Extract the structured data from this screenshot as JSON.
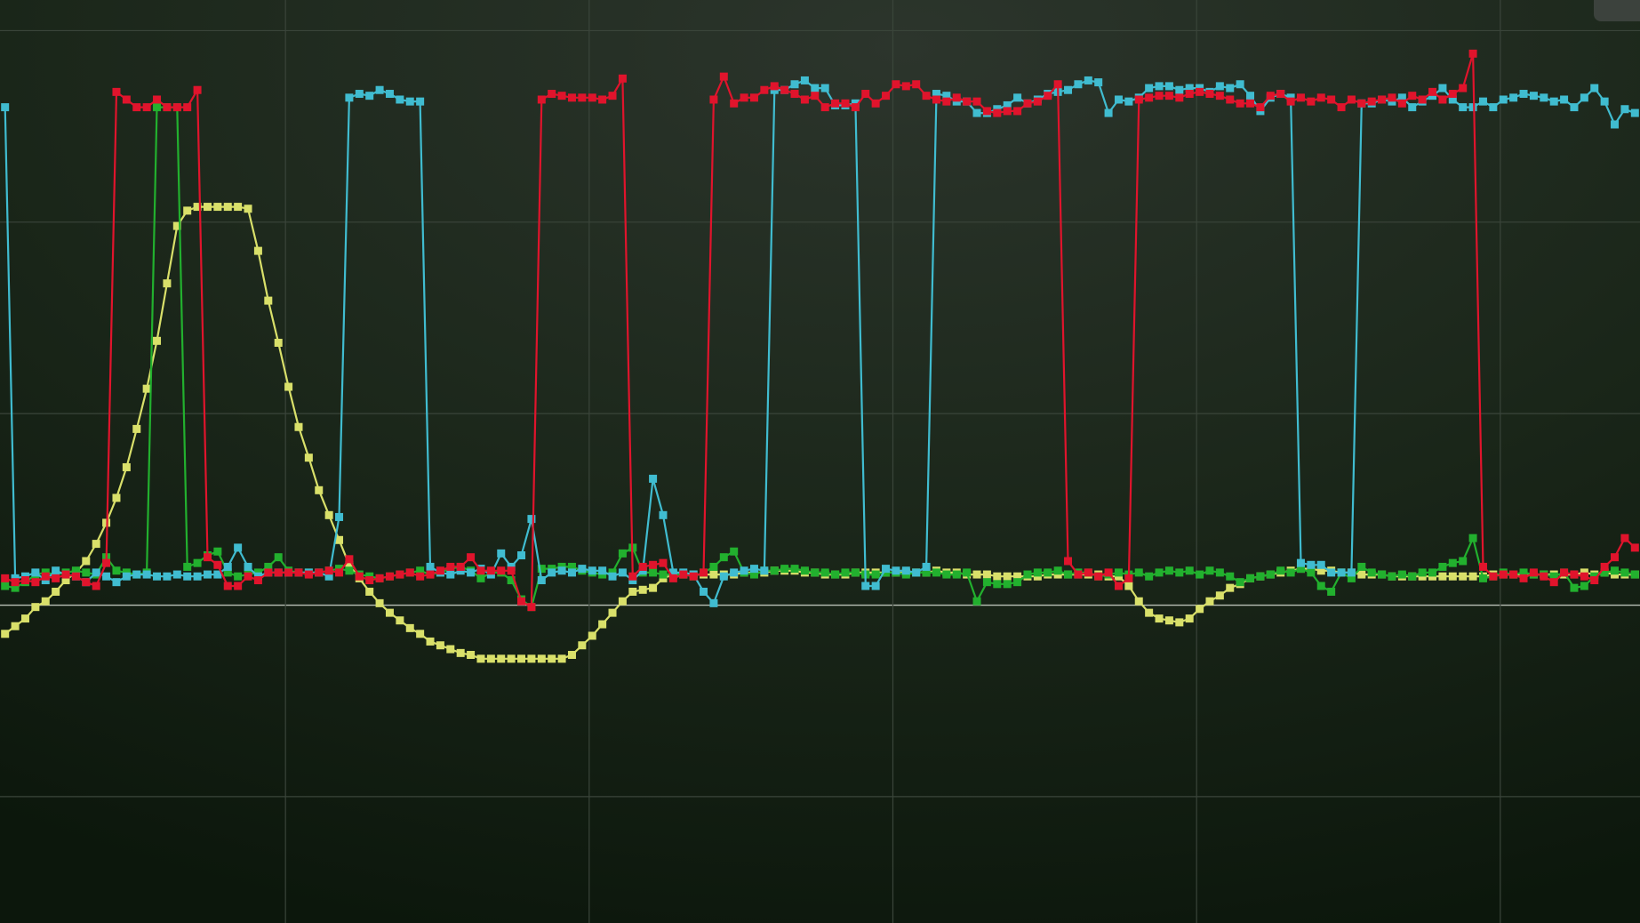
{
  "chart_data": {
    "type": "line",
    "x": [
      0,
      1,
      2,
      3,
      4,
      5,
      6,
      7,
      8,
      9,
      10,
      11,
      12,
      13,
      14,
      15,
      16,
      17,
      18,
      19,
      20,
      21,
      22,
      23,
      24,
      25,
      26,
      27,
      28,
      29,
      30,
      31,
      32,
      33,
      34,
      35,
      36,
      37,
      38,
      39,
      40,
      41,
      42,
      43,
      44,
      45,
      46,
      47,
      48,
      49,
      50,
      51,
      52,
      53,
      54,
      55,
      56,
      57,
      58,
      59,
      60,
      61,
      62,
      63,
      64,
      65,
      66,
      67,
      68,
      69,
      70,
      71,
      72,
      73,
      74,
      75,
      76,
      77,
      78,
      79,
      80,
      81,
      82,
      83,
      84,
      85,
      86,
      87,
      88,
      89,
      90,
      91,
      92,
      93,
      94,
      95,
      96,
      97,
      98,
      99,
      100,
      101,
      102,
      103,
      104,
      105,
      106,
      107,
      108,
      109,
      110,
      111,
      112,
      113,
      114,
      115,
      116,
      117,
      118,
      119,
      120,
      121,
      122,
      123,
      124,
      125,
      126,
      127,
      128,
      129,
      130,
      131,
      132,
      133,
      134,
      135,
      136,
      137,
      138,
      139,
      140,
      141,
      142,
      143,
      144,
      145,
      146,
      147,
      148,
      149,
      150,
      151,
      152,
      153,
      154,
      155,
      156,
      157,
      158,
      159,
      160,
      161
    ],
    "series": [
      {
        "color": "#d9e06a",
        "values": [
          -0.15,
          -0.11,
          -0.07,
          -0.01,
          0.02,
          0.07,
          0.13,
          0.17,
          0.23,
          0.32,
          0.43,
          0.56,
          0.72,
          0.92,
          1.13,
          1.38,
          1.68,
          1.98,
          2.06,
          2.08,
          2.08,
          2.08,
          2.08,
          2.08,
          2.07,
          1.85,
          1.59,
          1.37,
          1.14,
          0.93,
          0.77,
          0.6,
          0.47,
          0.34,
          0.21,
          0.14,
          0.07,
          0.01,
          -0.04,
          -0.08,
          -0.12,
          -0.15,
          -0.19,
          -0.21,
          -0.23,
          -0.25,
          -0.26,
          -0.28,
          -0.28,
          -0.28,
          -0.28,
          -0.28,
          -0.28,
          -0.28,
          -0.28,
          -0.28,
          -0.26,
          -0.21,
          -0.16,
          -0.1,
          -0.04,
          0.02,
          0.07,
          0.08,
          0.09,
          0.14,
          0.16,
          0.16,
          0.16,
          0.16,
          0.16,
          0.16,
          0.16,
          0.17,
          0.17,
          0.17,
          0.18,
          0.18,
          0.18,
          0.17,
          0.17,
          0.16,
          0.16,
          0.16,
          0.17,
          0.17,
          0.17,
          0.17,
          0.17,
          0.17,
          0.17,
          0.17,
          0.18,
          0.17,
          0.17,
          0.16,
          0.16,
          0.16,
          0.15,
          0.15,
          0.15,
          0.15,
          0.15,
          0.16,
          0.16,
          0.16,
          0.16,
          0.16,
          0.16,
          0.15,
          0.15,
          0.1,
          0.02,
          -0.04,
          -0.07,
          -0.08,
          -0.09,
          -0.07,
          -0.02,
          0.02,
          0.05,
          0.09,
          0.11,
          0.14,
          0.15,
          0.16,
          0.17,
          0.18,
          0.19,
          0.19,
          0.18,
          0.18,
          0.17,
          0.17,
          0.16,
          0.16,
          0.16,
          0.15,
          0.15,
          0.15,
          0.15,
          0.15,
          0.15,
          0.15,
          0.15,
          0.15,
          0.15,
          0.16,
          0.16,
          0.16,
          0.16,
          0.16,
          0.16,
          0.16,
          0.16,
          0.16,
          0.17,
          0.16,
          0.17,
          0.16,
          0.16,
          0.16
        ]
      },
      {
        "color": "#22b02e",
        "values": [
          0.1,
          0.09,
          0.12,
          0.16,
          0.17,
          0.16,
          0.17,
          0.18,
          0.17,
          0.16,
          0.25,
          0.18,
          0.17,
          0.16,
          0.17,
          2.6,
          2.6,
          2.6,
          0.2,
          0.22,
          0.26,
          0.28,
          0.17,
          0.15,
          0.16,
          0.17,
          0.2,
          0.25,
          0.18,
          0.17,
          0.17,
          0.17,
          0.18,
          0.19,
          0.18,
          0.16,
          0.15,
          0.14,
          0.15,
          0.16,
          0.17,
          0.18,
          0.16,
          0.17,
          0.19,
          0.2,
          0.18,
          0.14,
          0.17,
          0.17,
          0.13,
          0.03,
          -0.01,
          0.19,
          0.19,
          0.2,
          0.2,
          0.18,
          0.17,
          0.16,
          0.17,
          0.27,
          0.3,
          0.17,
          0.17,
          0.16,
          0.16,
          0.16,
          0.15,
          0.17,
          0.2,
          0.25,
          0.28,
          0.17,
          0.16,
          0.18,
          0.18,
          0.19,
          0.19,
          0.18,
          0.17,
          0.17,
          0.16,
          0.17,
          0.17,
          0.16,
          0.16,
          0.17,
          0.17,
          0.16,
          0.17,
          0.17,
          0.17,
          0.16,
          0.16,
          0.17,
          0.02,
          0.12,
          0.11,
          0.11,
          0.12,
          0.16,
          0.17,
          0.17,
          0.18,
          0.16,
          0.17,
          0.17,
          0.15,
          0.16,
          0.17,
          0.16,
          0.17,
          0.15,
          0.17,
          0.18,
          0.17,
          0.18,
          0.16,
          0.18,
          0.17,
          0.15,
          0.12,
          0.14,
          0.15,
          0.16,
          0.18,
          0.17,
          0.19,
          0.17,
          0.1,
          0.07,
          0.17,
          0.14,
          0.2,
          0.17,
          0.16,
          0.15,
          0.16,
          0.15,
          0.17,
          0.17,
          0.2,
          0.22,
          0.23,
          0.35,
          0.14,
          0.15,
          0.17,
          0.16,
          0.17,
          0.16,
          0.16,
          0.15,
          0.17,
          0.09,
          0.1,
          0.15,
          0.17,
          0.18,
          0.17,
          0.16
        ]
      },
      {
        "color": "#40bcd0",
        "values": [
          2.6,
          0.14,
          0.15,
          0.17,
          0.13,
          0.18,
          0.16,
          0.15,
          0.12,
          0.17,
          0.15,
          0.12,
          0.15,
          0.16,
          0.16,
          0.15,
          0.15,
          0.16,
          0.15,
          0.15,
          0.16,
          0.16,
          0.2,
          0.3,
          0.2,
          0.15,
          0.17,
          0.17,
          0.17,
          0.17,
          0.17,
          0.17,
          0.15,
          0.46,
          2.65,
          2.67,
          2.66,
          2.69,
          2.67,
          2.64,
          2.63,
          2.63,
          0.2,
          0.17,
          0.16,
          0.18,
          0.17,
          0.19,
          0.16,
          0.27,
          0.2,
          0.26,
          0.45,
          0.13,
          0.17,
          0.18,
          0.17,
          0.19,
          0.18,
          0.18,
          0.15,
          0.17,
          0.13,
          0.18,
          0.66,
          0.47,
          0.17,
          0.17,
          0.16,
          0.07,
          0.01,
          0.15,
          0.17,
          0.18,
          0.19,
          0.18,
          2.69,
          2.69,
          2.72,
          2.74,
          2.7,
          2.7,
          2.61,
          2.61,
          2.62,
          0.1,
          0.1,
          0.19,
          0.18,
          0.18,
          0.17,
          0.2,
          2.67,
          2.66,
          2.63,
          2.63,
          2.57,
          2.57,
          2.59,
          2.61,
          2.65,
          2.62,
          2.64,
          2.67,
          2.68,
          2.69,
          2.72,
          2.74,
          2.73,
          2.57,
          2.64,
          2.63,
          2.65,
          2.7,
          2.71,
          2.71,
          2.69,
          2.7,
          2.7,
          2.68,
          2.71,
          2.7,
          2.72,
          2.66,
          2.58,
          2.65,
          2.67,
          2.65,
          0.22,
          0.21,
          0.21,
          0.17,
          0.17,
          0.17,
          2.62,
          2.62,
          2.64,
          2.63,
          2.65,
          2.6,
          2.63,
          2.66,
          2.7,
          2.64,
          2.6,
          2.6,
          2.63,
          2.6,
          2.64,
          2.65,
          2.67,
          2.66,
          2.65,
          2.63,
          2.64,
          2.6,
          2.65,
          2.7,
          2.63,
          2.51,
          2.59,
          2.57
        ]
      },
      {
        "color": "#e0142c",
        "values": [
          0.14,
          0.12,
          0.13,
          0.12,
          0.15,
          0.14,
          0.16,
          0.15,
          0.12,
          0.1,
          0.22,
          2.68,
          2.64,
          2.6,
          2.6,
          2.64,
          2.6,
          2.6,
          2.6,
          2.69,
          0.25,
          0.21,
          0.1,
          0.1,
          0.15,
          0.13,
          0.17,
          0.17,
          0.17,
          0.17,
          0.16,
          0.17,
          0.18,
          0.17,
          0.24,
          0.15,
          0.13,
          0.14,
          0.15,
          0.16,
          0.17,
          0.15,
          0.16,
          0.18,
          0.2,
          0.2,
          0.25,
          0.18,
          0.18,
          0.18,
          0.18,
          0.02,
          -0.01,
          2.64,
          2.67,
          2.66,
          2.65,
          2.65,
          2.65,
          2.64,
          2.66,
          2.75,
          0.15,
          0.2,
          0.21,
          0.22,
          0.14,
          0.16,
          0.15,
          0.17,
          2.64,
          2.76,
          2.62,
          2.65,
          2.65,
          2.69,
          2.71,
          2.69,
          2.67,
          2.64,
          2.66,
          2.6,
          2.62,
          2.62,
          2.6,
          2.67,
          2.62,
          2.66,
          2.72,
          2.71,
          2.72,
          2.66,
          2.64,
          2.63,
          2.65,
          2.63,
          2.63,
          2.58,
          2.57,
          2.58,
          2.58,
          2.62,
          2.63,
          2.66,
          2.72,
          0.23,
          0.16,
          0.17,
          0.15,
          0.17,
          0.1,
          0.14,
          2.64,
          2.65,
          2.66,
          2.66,
          2.65,
          2.67,
          2.68,
          2.67,
          2.66,
          2.64,
          2.62,
          2.62,
          2.6,
          2.66,
          2.67,
          2.63,
          2.65,
          2.63,
          2.65,
          2.64,
          2.6,
          2.64,
          2.62,
          2.63,
          2.64,
          2.65,
          2.62,
          2.66,
          2.64,
          2.68,
          2.64,
          2.67,
          2.7,
          2.88,
          0.2,
          0.15,
          0.16,
          0.16,
          0.14,
          0.17,
          0.15,
          0.12,
          0.17,
          0.16,
          0.15,
          0.13,
          0.2,
          0.25,
          0.35,
          0.3
        ]
      }
    ],
    "xlim": [
      -0.5,
      161.5
    ],
    "ylim": [
      -1.66,
      3.16
    ],
    "xticks": [
      27.7,
      57.7,
      87.7,
      117.7,
      147.7
    ],
    "yticks": [
      -1,
      0,
      1,
      2,
      3
    ],
    "grid": true
  }
}
